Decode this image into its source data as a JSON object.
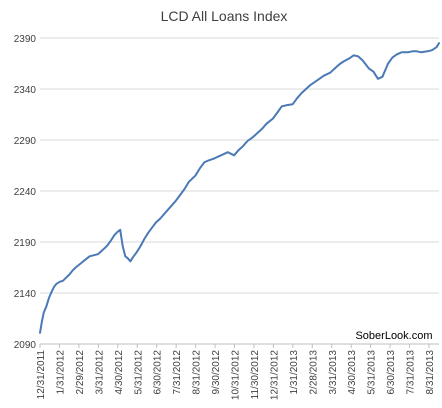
{
  "chart_data": {
    "type": "line",
    "title": "LCD All Loans Index",
    "watermark": "SoberLook.com",
    "xlabel": "",
    "ylabel": "",
    "ylim": [
      2090,
      2390
    ],
    "y_ticks": [
      2090,
      2140,
      2190,
      2240,
      2290,
      2340,
      2390
    ],
    "x_ticks": [
      "12/31/2011",
      "1/31/2012",
      "2/29/2012",
      "3/31/2012",
      "4/30/2012",
      "5/31/2012",
      "6/30/2012",
      "7/31/2012",
      "8/31/2012",
      "9/30/2012",
      "10/31/2012",
      "11/30/2012",
      "12/31/2012",
      "1/31/2013",
      "2/28/2013",
      "3/31/2013",
      "4/30/2013",
      "5/31/2013",
      "6/30/2013",
      "7/31/2013",
      "8/31/2013"
    ],
    "grid": true,
    "line_color": "#4a7ab5",
    "series": [
      {
        "x": [
          "2011-12-31",
          "2012-01-03",
          "2012-01-06",
          "2012-01-10",
          "2012-01-14",
          "2012-01-18",
          "2012-01-22",
          "2012-01-26",
          "2012-01-31",
          "2012-02-05",
          "2012-02-10",
          "2012-02-15",
          "2012-02-20",
          "2012-02-25",
          "2012-02-29",
          "2012-03-06",
          "2012-03-12",
          "2012-03-18",
          "2012-03-24",
          "2012-03-31",
          "2012-04-07",
          "2012-04-14",
          "2012-04-20",
          "2012-04-26",
          "2012-05-01",
          "2012-05-05",
          "2012-05-09",
          "2012-05-13",
          "2012-05-17",
          "2012-05-21",
          "2012-05-25",
          "2012-05-31",
          "2012-06-06",
          "2012-06-12",
          "2012-06-18",
          "2012-06-24",
          "2012-06-30",
          "2012-07-07",
          "2012-07-14",
          "2012-07-21",
          "2012-07-31",
          "2012-08-07",
          "2012-08-14",
          "2012-08-21",
          "2012-08-31",
          "2012-09-07",
          "2012-09-14",
          "2012-09-21",
          "2012-09-30",
          "2012-10-07",
          "2012-10-14",
          "2012-10-21",
          "2012-10-31",
          "2012-11-07",
          "2012-11-14",
          "2012-11-21",
          "2012-11-30",
          "2012-12-07",
          "2012-12-14",
          "2012-12-21",
          "2012-12-31",
          "2013-01-07",
          "2013-01-14",
          "2013-01-21",
          "2013-01-31",
          "2013-02-07",
          "2013-02-14",
          "2013-02-21",
          "2013-02-28",
          "2013-03-07",
          "2013-03-14",
          "2013-03-21",
          "2013-03-31",
          "2013-04-07",
          "2013-04-14",
          "2013-04-21",
          "2013-04-30",
          "2013-05-07",
          "2013-05-14",
          "2013-05-21",
          "2013-05-31",
          "2013-06-07",
          "2013-06-14",
          "2013-06-21",
          "2013-06-30",
          "2013-07-07",
          "2013-07-14",
          "2013-07-21",
          "2013-07-31",
          "2013-08-07",
          "2013-08-14",
          "2013-08-21",
          "2013-08-31",
          "2013-09-07",
          "2013-09-14",
          "2013-09-18"
        ],
        "values": [
          2101,
          2112,
          2121,
          2127,
          2135,
          2141,
          2146,
          2149,
          2151,
          2152,
          2155,
          2158,
          2162,
          2165,
          2167,
          2170,
          2173,
          2176,
          2177,
          2178,
          2182,
          2186,
          2191,
          2197,
          2200,
          2202,
          2186,
          2176,
          2174,
          2171,
          2175,
          2180,
          2186,
          2193,
          2199,
          2204,
          2209,
          2213,
          2218,
          2223,
          2230,
          2236,
          2242,
          2249,
          2255,
          2262,
          2268,
          2270,
          2272,
          2274,
          2276,
          2278,
          2275,
          2280,
          2284,
          2289,
          2293,
          2297,
          2301,
          2306,
          2311,
          2317,
          2323,
          2324,
          2325,
          2331,
          2336,
          2340,
          2344,
          2347,
          2350,
          2353,
          2356,
          2360,
          2364,
          2367,
          2370,
          2373,
          2372,
          2368,
          2360,
          2357,
          2350,
          2352,
          2365,
          2371,
          2374,
          2376,
          2376,
          2377,
          2377,
          2376,
          2377,
          2378,
          2381,
          2385
        ]
      }
    ]
  }
}
